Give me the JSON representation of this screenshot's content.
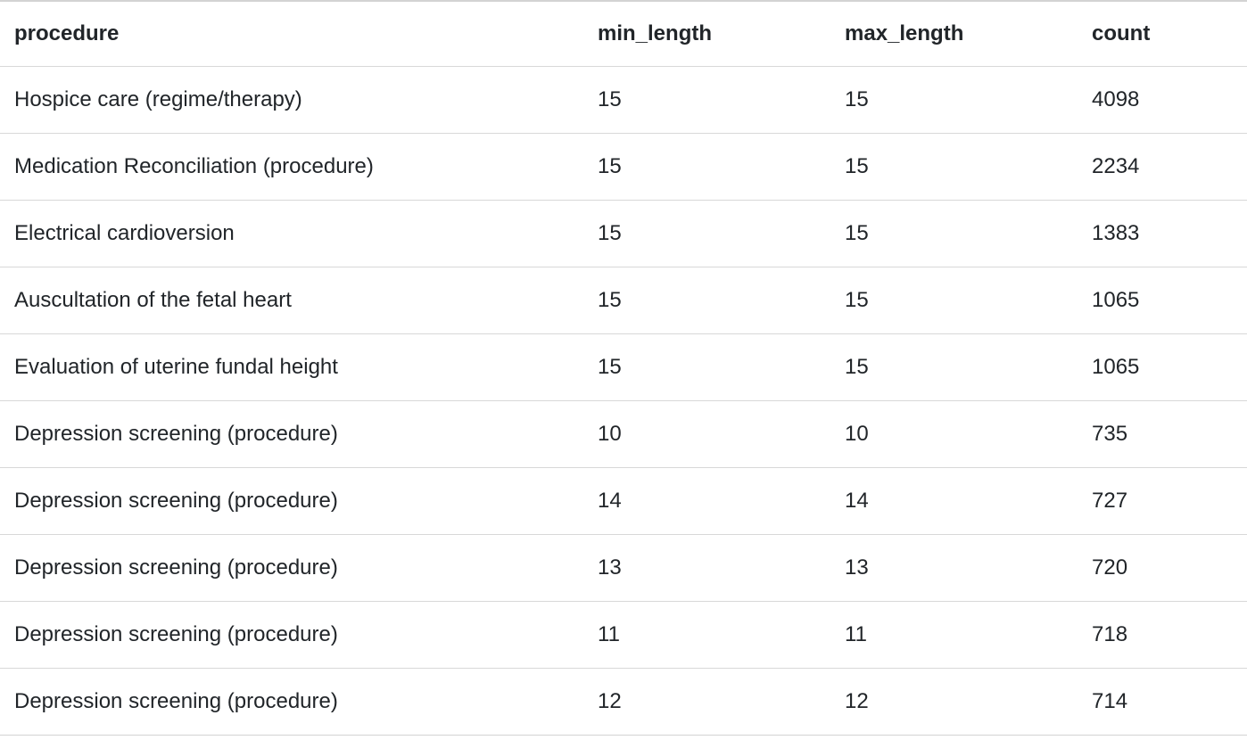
{
  "chart_data": {
    "type": "table",
    "columns": [
      "procedure",
      "min_length",
      "max_length",
      "count"
    ],
    "rows": [
      [
        "Hospice care (regime/therapy)",
        15,
        15,
        4098
      ],
      [
        "Medication Reconciliation (procedure)",
        15,
        15,
        2234
      ],
      [
        "Electrical cardioversion",
        15,
        15,
        1383
      ],
      [
        "Auscultation of the fetal heart",
        15,
        15,
        1065
      ],
      [
        "Evaluation of uterine fundal height",
        15,
        15,
        1065
      ],
      [
        "Depression screening (procedure)",
        10,
        10,
        735
      ],
      [
        "Depression screening (procedure)",
        14,
        14,
        727
      ],
      [
        "Depression screening (procedure)",
        13,
        13,
        720
      ],
      [
        "Depression screening (procedure)",
        11,
        11,
        718
      ],
      [
        "Depression screening (procedure)",
        12,
        12,
        714
      ]
    ]
  },
  "colors": {
    "text": "#212529",
    "row_border": "#d8d8d8",
    "outer_border": "#d3d3d3",
    "background": "#ffffff"
  }
}
